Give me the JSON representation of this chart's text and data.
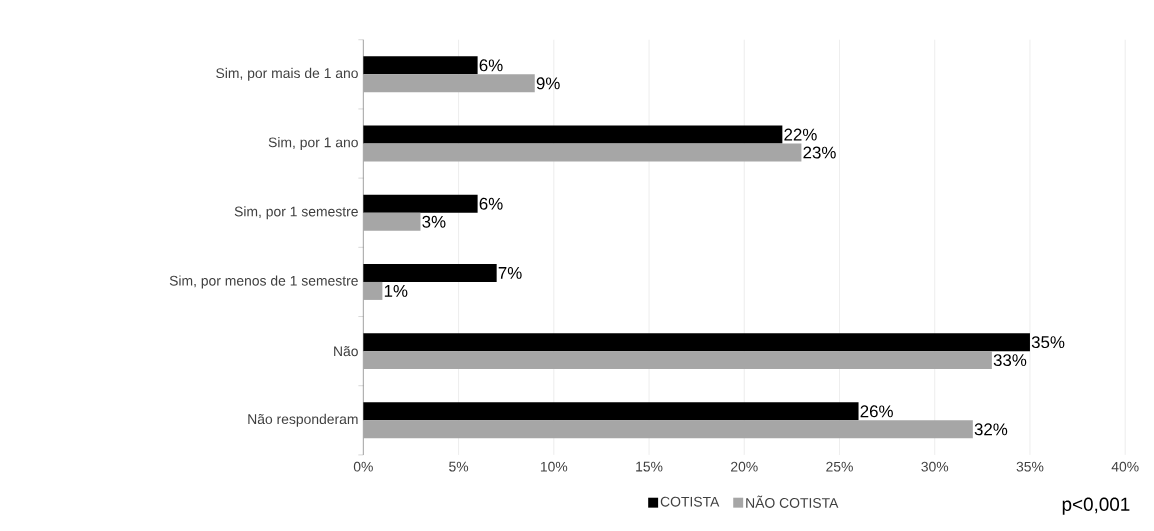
{
  "chart_data": {
    "type": "bar",
    "orientation": "horizontal",
    "categories": [
      "Sim, por mais de 1 ano",
      "Sim, por 1 ano",
      "Sim, por 1 semestre",
      "Sim, por menos de 1 semestre",
      "Não",
      "Não responderam"
    ],
    "series": [
      {
        "name": "COTISTA",
        "color": "#000000",
        "values": [
          6,
          22,
          6,
          7,
          35,
          26
        ],
        "value_labels": [
          "6%",
          "22%",
          "6%",
          "7%",
          "35%",
          "26%"
        ]
      },
      {
        "name": "NÃO COTISTA",
        "color": "#a6a6a6",
        "values": [
          9,
          23,
          3,
          1,
          33,
          32
        ],
        "value_labels": [
          "9%",
          "23%",
          "3%",
          "1%",
          "33%",
          "32%"
        ]
      }
    ],
    "xlim": [
      0,
      40
    ],
    "xticks": [
      {
        "value": 0,
        "label": "0%"
      },
      {
        "value": 5,
        "label": "5%"
      },
      {
        "value": 10,
        "label": "10%"
      },
      {
        "value": 15,
        "label": "15%"
      },
      {
        "value": 20,
        "label": "20%"
      },
      {
        "value": 25,
        "label": "25%"
      },
      {
        "value": 30,
        "label": "30%"
      },
      {
        "value": 35,
        "label": "35%"
      },
      {
        "value": 40,
        "label": "40%"
      }
    ],
    "grid": "x",
    "legend": "bottom",
    "annotations": [
      "p<0,001"
    ]
  }
}
